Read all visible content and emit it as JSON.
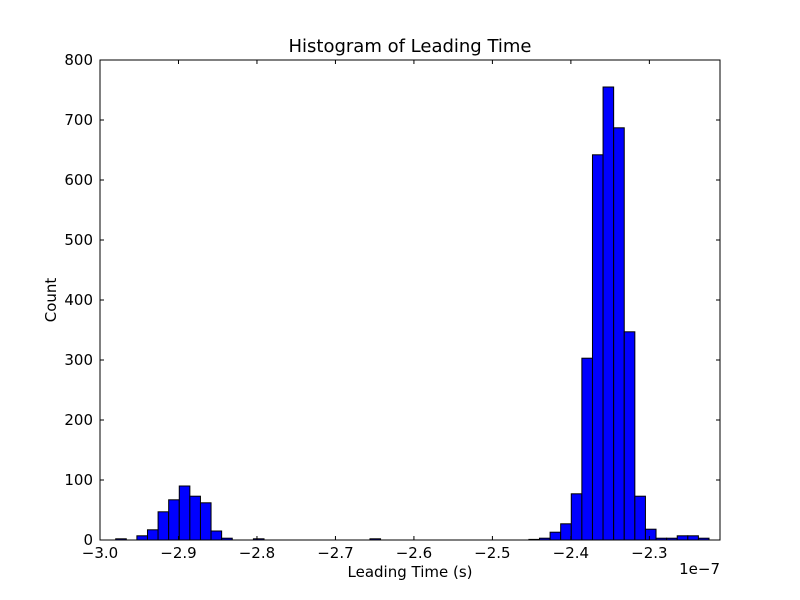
{
  "chart_data": {
    "type": "bar",
    "title": "Histogram of Leading Time",
    "xlabel": "Leading Time (s)",
    "ylabel": "Count",
    "x_offset_label": "1e−7",
    "xlim": [
      -3.0,
      -2.21
    ],
    "ylim": [
      0,
      800
    ],
    "x_ticks": [
      -3.0,
      -2.9,
      -2.8,
      -2.7,
      -2.6,
      -2.5,
      -2.4,
      -2.3
    ],
    "x_tick_labels": [
      "−3.0",
      "−2.9",
      "−2.8",
      "−2.7",
      "−2.6",
      "−2.5",
      "−2.4",
      "−2.3"
    ],
    "y_ticks": [
      0,
      100,
      200,
      300,
      400,
      500,
      600,
      700,
      800
    ],
    "y_tick_labels": [
      "0",
      "100",
      "200",
      "300",
      "400",
      "500",
      "600",
      "700",
      "800"
    ],
    "grid": false,
    "bar_color": "#0000ff",
    "edge_color": "#000000",
    "bin_edges": [
      -2.98,
      -2.9665,
      -2.953,
      -2.9395,
      -2.926,
      -2.9125,
      -2.899,
      -2.8855,
      -2.872,
      -2.8585,
      -2.845,
      -2.8315,
      -2.818,
      -2.8045,
      -2.791,
      -2.7775,
      -2.764,
      -2.7505,
      -2.737,
      -2.7235,
      -2.71,
      -2.6965,
      -2.683,
      -2.6695,
      -2.656,
      -2.6425,
      -2.629,
      -2.6155,
      -2.602,
      -2.5885,
      -2.575,
      -2.5615,
      -2.548,
      -2.5345,
      -2.521,
      -2.5075,
      -2.494,
      -2.4805,
      -2.467,
      -2.4535,
      -2.44,
      -2.4265,
      -2.413,
      -2.3995,
      -2.386,
      -2.3725,
      -2.359,
      -2.3455,
      -2.332,
      -2.3185,
      -2.305,
      -2.2915,
      -2.278,
      -2.2645,
      -2.251,
      -2.2375,
      -2.224,
      -2.2105
    ],
    "counts": [
      2,
      0,
      7,
      17,
      47,
      67,
      90,
      73,
      62,
      15,
      3,
      0,
      0,
      2,
      0,
      0,
      0,
      0,
      0,
      0,
      0,
      0,
      0,
      0,
      2,
      0,
      0,
      0,
      0,
      0,
      0,
      0,
      0,
      0,
      0,
      0,
      0,
      0,
      0,
      1,
      3,
      13,
      27,
      77,
      303,
      642,
      755,
      687,
      347,
      73,
      18,
      3,
      3,
      7,
      7,
      3,
      0
    ]
  }
}
